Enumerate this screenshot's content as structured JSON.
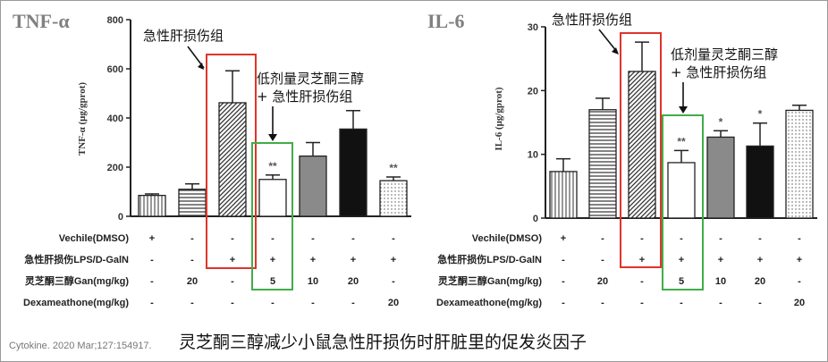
{
  "caption": "灵芝酮三醇减少小鼠急性肝损伤时肝脏里的促发炎因子",
  "citation": "Cytokine. 2020 Mar;127:154917.",
  "annotations": {
    "acute_group": "急性肝损伤组",
    "low_dose_line1": "低剂量灵芝酮三醇",
    "low_dose_line2": "+ 急性肝损伤组"
  },
  "table_rows": [
    {
      "label": "Vechile(DMSO)",
      "cells": [
        "+",
        "-",
        "-",
        "-",
        "-",
        "-",
        "-"
      ]
    },
    {
      "label": "急性肝损伤LPS/D-GalN",
      "cells": [
        "-",
        "-",
        "+",
        "+",
        "+",
        "+",
        "+"
      ]
    },
    {
      "label": "灵芝酮三醇Gan(mg/kg)",
      "cells": [
        "-",
        "20",
        "-",
        "5",
        "10",
        "20",
        "-"
      ]
    },
    {
      "label": "Dexameathone(mg/kg)",
      "cells": [
        "-",
        "-",
        "-",
        "-",
        "-",
        "-",
        "20"
      ]
    }
  ],
  "colors": {
    "highlight_red": "#e0342a",
    "highlight_green": "#3fae49",
    "dark_bar": "#111111",
    "gray_bar": "#8a8a8a"
  },
  "chart_data": [
    {
      "type": "bar",
      "title": "TNF-α",
      "ylabel": "TNF-α (μg/gprot)",
      "ylim": [
        0,
        800
      ],
      "yticks": [
        "0",
        "200",
        "400",
        "600",
        "800"
      ],
      "groups": 7,
      "values": [
        85,
        110,
        462,
        150,
        245,
        355,
        145
      ],
      "errors": [
        6,
        22,
        130,
        18,
        55,
        75,
        15
      ],
      "significance": [
        "",
        "",
        "",
        "**",
        "",
        "",
        "**"
      ],
      "patterns": [
        "vlines",
        "hlines",
        "diag",
        "white",
        "gray",
        "black",
        "dots"
      ]
    },
    {
      "type": "bar",
      "title": "IL-6",
      "ylabel": "IL-6 (μg/gprot)",
      "ylim": [
        0,
        30
      ],
      "yticks": [
        "0",
        "10",
        "20",
        "30"
      ],
      "groups": 7,
      "values": [
        7.3,
        17.0,
        23.0,
        8.7,
        12.7,
        11.3,
        16.9
      ],
      "errors": [
        2.0,
        1.8,
        4.6,
        1.9,
        1.0,
        3.6,
        0.8
      ],
      "significance": [
        "",
        "",
        "",
        "**",
        "*",
        "*",
        ""
      ],
      "patterns": [
        "vlines",
        "hlines",
        "diag",
        "white",
        "gray",
        "black",
        "dots"
      ]
    }
  ]
}
